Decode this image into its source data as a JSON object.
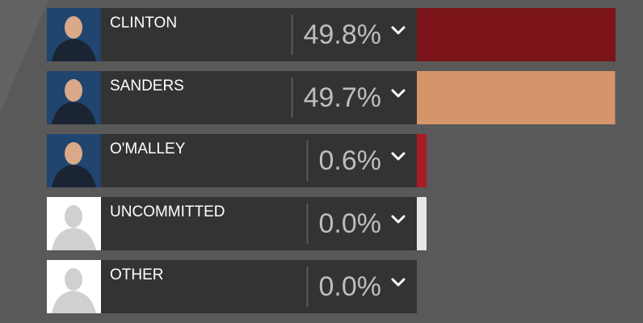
{
  "chart_data": {
    "type": "bar",
    "categories": [
      "CLINTON",
      "SANDERS",
      "O'MALLEY",
      "UNCOMMITTED",
      "OTHER"
    ],
    "values": [
      49.8,
      49.7,
      0.6,
      0.0,
      0.0
    ],
    "value_labels": [
      "49.8%",
      "49.7%",
      "0.6%",
      "0.0%",
      "0.0%"
    ],
    "colors": [
      "#7a1418",
      "#d4956a",
      "#a61c22",
      "#e6e6e6",
      null
    ]
  }
}
